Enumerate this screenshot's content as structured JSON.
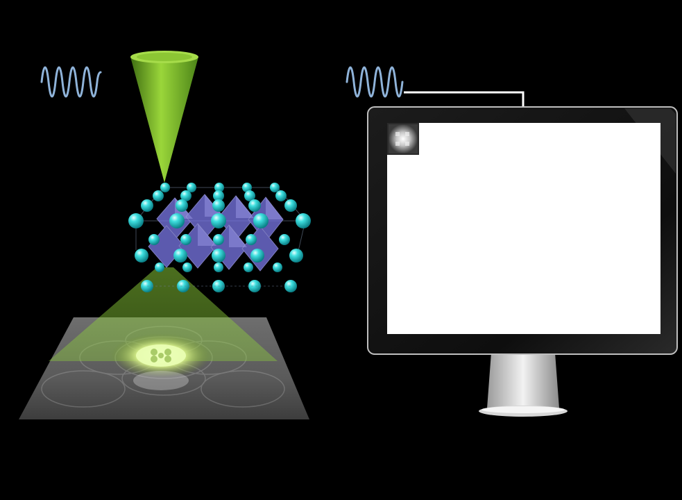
{
  "scene": {
    "background": "#000000",
    "left_panel": {
      "wave_icon": "sine-wave-icon",
      "probe": "electron-beam-cone",
      "crystal": "perovskite-lattice",
      "detector": "diffraction-pattern-screen"
    },
    "right_panel": {
      "wave_icon": "sine-wave-icon",
      "monitor": "computer-monitor",
      "screen_content": "diffraction-pattern-thumbnail"
    },
    "colors": {
      "wave": "#8fb3d9",
      "beam": "#7bbf2c",
      "atom": "#27d3d3",
      "octahedron": "#7b78e8",
      "screen": "#ffffff",
      "bezel": "#111111"
    }
  }
}
